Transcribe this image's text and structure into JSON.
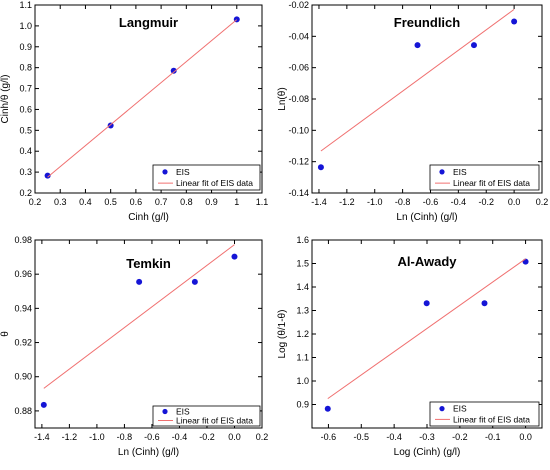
{
  "legend_labels": {
    "points": "EIS",
    "fit": "Linear fit of EIS data"
  },
  "colors": {
    "points": "#1515d6",
    "fit": "#f07070",
    "axis": "#000000"
  },
  "chart_data": [
    {
      "type": "scatter",
      "title": "Langmuir",
      "xlabel": "Cinh (g/l)",
      "ylabel": "Cinh/θ (g/l)",
      "xlim": [
        0.2,
        1.1
      ],
      "ylim": [
        0.2,
        1.1
      ],
      "xticks": [
        0.2,
        0.3,
        0.4,
        0.5,
        0.6,
        0.7,
        0.8,
        0.9,
        1.0,
        1.1
      ],
      "xtick_labels": [
        "0.2",
        "0.3",
        "0.4",
        "0.5",
        "0.6",
        "0.7",
        "0.8",
        "0.9",
        "1",
        "1.1"
      ],
      "yticks": [
        0.2,
        0.3,
        0.4,
        0.5,
        0.6,
        0.7,
        0.8,
        0.9,
        1.0,
        1.1
      ],
      "ytick_labels": [
        "0.2",
        "0.3",
        "0.4",
        "0.5",
        "0.6",
        "0.7",
        "0.8",
        "0.9",
        "1.0",
        "1.1"
      ],
      "series": [
        {
          "name": "EIS",
          "kind": "points",
          "x": [
            0.25,
            0.5,
            0.75,
            1.0
          ],
          "y": [
            0.283,
            0.523,
            0.785,
            1.031
          ]
        },
        {
          "name": "Linear fit of EIS data",
          "kind": "line",
          "x": [
            0.25,
            1.0
          ],
          "y": [
            0.276,
            1.03
          ]
        }
      ],
      "legend": "bottom-right",
      "grid": false
    },
    {
      "type": "scatter",
      "title": "Freundlich",
      "xlabel": "Ln (Cinh) (g/l)",
      "ylabel": "Ln(θ)",
      "xlim": [
        -1.45,
        0.2
      ],
      "ylim": [
        -0.14,
        -0.02
      ],
      "xticks": [
        -1.4,
        -1.2,
        -1.0,
        -0.8,
        -0.6,
        -0.4,
        -0.2,
        0.0,
        0.2
      ],
      "xtick_labels": [
        "-1.4",
        "-1.2",
        "-1.0",
        "-0.8",
        "-0.6",
        "-0.4",
        "-0.2",
        "0.0",
        "0.2"
      ],
      "yticks": [
        -0.14,
        -0.12,
        -0.1,
        -0.08,
        -0.06,
        -0.04,
        -0.02
      ],
      "ytick_labels": [
        "-0.14",
        "-0.12",
        "-0.10",
        "-0.08",
        "-0.06",
        "-0.04",
        "-0.02"
      ],
      "series": [
        {
          "name": "EIS",
          "kind": "points",
          "x": [
            -1.386,
            -0.693,
            -0.288,
            0.0
          ],
          "y": [
            -0.1236,
            -0.0456,
            -0.0456,
            -0.0305
          ]
        },
        {
          "name": "Linear fit of EIS data",
          "kind": "line",
          "x": [
            -1.386,
            0.0
          ],
          "y": [
            -0.1132,
            -0.0228
          ]
        }
      ],
      "legend": "bottom-right",
      "grid": false
    },
    {
      "type": "scatter",
      "title": "Temkin",
      "xlabel": "Ln (Cinh) (g/l)",
      "ylabel": "θ",
      "xlim": [
        -1.45,
        0.2
      ],
      "ylim": [
        0.87,
        0.98
      ],
      "xticks": [
        -1.4,
        -1.2,
        -1.0,
        -0.8,
        -0.6,
        -0.4,
        -0.2,
        0.0,
        0.2
      ],
      "xtick_labels": [
        "-1.4",
        "-1.2",
        "-1.0",
        "-0.8",
        "-0.6",
        "-0.4",
        "-0.2",
        "0.0",
        "0.2"
      ],
      "yticks": [
        0.88,
        0.9,
        0.92,
        0.94,
        0.96,
        0.98
      ],
      "ytick_labels": [
        "0.88",
        "0.90",
        "0.92",
        "0.94",
        "0.96",
        "0.98"
      ],
      "series": [
        {
          "name": "EIS",
          "kind": "points",
          "x": [
            -1.386,
            -0.693,
            -0.288,
            0.0
          ],
          "y": [
            0.8835,
            0.9555,
            0.9555,
            0.9703
          ]
        },
        {
          "name": "Linear fit of EIS data",
          "kind": "line",
          "x": [
            -1.386,
            0.0
          ],
          "y": [
            0.8932,
            0.9773
          ]
        }
      ],
      "legend": "bottom-right",
      "grid": false
    },
    {
      "type": "scatter",
      "title": "Al-Awady",
      "xlabel": "Log (Cinh) (g/l)",
      "ylabel": "Log (θ/1-θ)",
      "xlim": [
        -0.65,
        0.05
      ],
      "ylim": [
        0.8,
        1.6
      ],
      "xticks": [
        -0.6,
        -0.5,
        -0.4,
        -0.3,
        -0.2,
        -0.1,
        0.0
      ],
      "xtick_labels": [
        "-0.6",
        "-0.5",
        "-0.4",
        "-0.3",
        "-0.2",
        "-0.1",
        "0.0"
      ],
      "yticks": [
        0.9,
        1.0,
        1.1,
        1.2,
        1.3,
        1.4,
        1.5,
        1.6
      ],
      "ytick_labels": [
        "0.9",
        "1.0",
        "1.1",
        "1.2",
        "1.3",
        "1.4",
        "1.5",
        "1.6"
      ],
      "series": [
        {
          "name": "EIS",
          "kind": "points",
          "x": [
            -0.602,
            -0.301,
            -0.125,
            0.0
          ],
          "y": [
            0.882,
            1.331,
            1.331,
            1.508
          ]
        },
        {
          "name": "Linear fit of EIS data",
          "kind": "line",
          "x": [
            -0.602,
            0.0
          ],
          "y": [
            0.925,
            1.52
          ]
        }
      ],
      "legend": "bottom-right",
      "grid": false
    }
  ]
}
